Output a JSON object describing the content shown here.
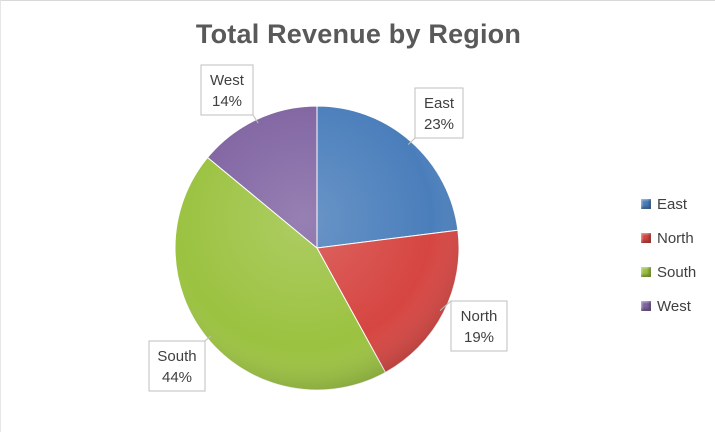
{
  "chart_data": {
    "type": "pie",
    "title": "Total Revenue by Region",
    "categories": [
      "East",
      "North",
      "South",
      "West"
    ],
    "values": [
      23,
      19,
      44,
      14
    ],
    "data_labels": [
      "23%",
      "19%",
      "44%",
      "14%"
    ],
    "colors": [
      "#4a7ebb",
      "#d64541",
      "#9bc240",
      "#8064a2"
    ],
    "legend_position": "right"
  }
}
